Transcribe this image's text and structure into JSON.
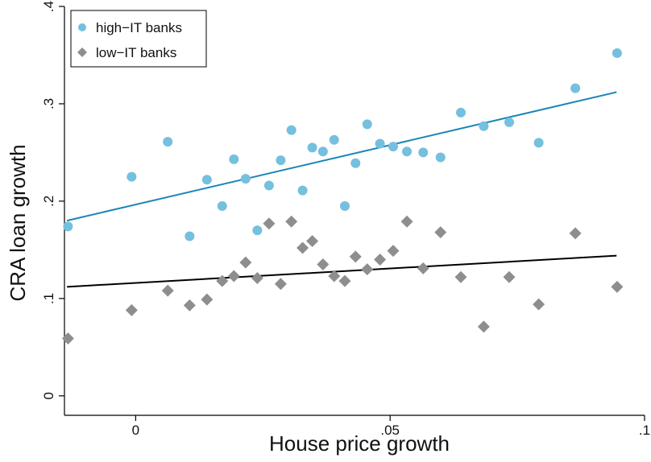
{
  "chart_data": {
    "type": "scatter",
    "xlabel": "House price growth",
    "ylabel": "CRA loan growth",
    "xlim": [
      -0.014,
      0.1
    ],
    "ylim": [
      -0.02,
      0.4
    ],
    "x_ticks": [
      {
        "value": 0,
        "label": "0"
      },
      {
        "value": 0.05,
        "label": ".05"
      },
      {
        "value": 0.1,
        "label": ".1"
      }
    ],
    "y_ticks": [
      {
        "value": 0,
        "label": "0"
      },
      {
        "value": 0.1,
        "label": ".1"
      },
      {
        "value": 0.2,
        "label": ".2"
      },
      {
        "value": 0.3,
        "label": ".3"
      },
      {
        "value": 0.4,
        "label": ".4"
      }
    ],
    "legend": {
      "position": "top-left"
    },
    "series": [
      {
        "name": "high−IT banks",
        "marker": "circle",
        "color": "#74c0de",
        "fit_color": "#1a86b8",
        "fit": {
          "x": [
            -0.0135,
            0.0945
          ],
          "y": [
            0.18,
            0.312
          ]
        },
        "points": [
          [
            -0.0133,
            0.174
          ],
          [
            -0.0008,
            0.225
          ],
          [
            0.0063,
            0.261
          ],
          [
            0.0106,
            0.164
          ],
          [
            0.014,
            0.222
          ],
          [
            0.017,
            0.195
          ],
          [
            0.0193,
            0.243
          ],
          [
            0.0216,
            0.223
          ],
          [
            0.0239,
            0.17
          ],
          [
            0.0262,
            0.216
          ],
          [
            0.0285,
            0.242
          ],
          [
            0.0306,
            0.273
          ],
          [
            0.0328,
            0.211
          ],
          [
            0.0347,
            0.255
          ],
          [
            0.0368,
            0.251
          ],
          [
            0.039,
            0.263
          ],
          [
            0.0411,
            0.195
          ],
          [
            0.0432,
            0.239
          ],
          [
            0.0455,
            0.279
          ],
          [
            0.048,
            0.259
          ],
          [
            0.0506,
            0.256
          ],
          [
            0.0533,
            0.251
          ],
          [
            0.0565,
            0.25
          ],
          [
            0.0599,
            0.245
          ],
          [
            0.0639,
            0.291
          ],
          [
            0.0684,
            0.277
          ],
          [
            0.0734,
            0.281
          ],
          [
            0.0792,
            0.26
          ],
          [
            0.0864,
            0.316
          ],
          [
            0.0946,
            0.352
          ]
        ]
      },
      {
        "name": "low−IT banks",
        "marker": "diamond",
        "color": "#8e8e8e",
        "fit_color": "#000000",
        "fit": {
          "x": [
            -0.0135,
            0.0945
          ],
          "y": [
            0.112,
            0.144
          ]
        },
        "points": [
          [
            -0.0133,
            0.059
          ],
          [
            -0.0008,
            0.088
          ],
          [
            0.0063,
            0.108
          ],
          [
            0.0106,
            0.093
          ],
          [
            0.014,
            0.099
          ],
          [
            0.017,
            0.118
          ],
          [
            0.0193,
            0.123
          ],
          [
            0.0216,
            0.137
          ],
          [
            0.0239,
            0.121
          ],
          [
            0.0262,
            0.177
          ],
          [
            0.0285,
            0.115
          ],
          [
            0.0306,
            0.179
          ],
          [
            0.0328,
            0.152
          ],
          [
            0.0347,
            0.159
          ],
          [
            0.0368,
            0.135
          ],
          [
            0.039,
            0.123
          ],
          [
            0.0411,
            0.118
          ],
          [
            0.0432,
            0.143
          ],
          [
            0.0455,
            0.13
          ],
          [
            0.048,
            0.14
          ],
          [
            0.0506,
            0.149
          ],
          [
            0.0533,
            0.179
          ],
          [
            0.0565,
            0.131
          ],
          [
            0.0599,
            0.168
          ],
          [
            0.0639,
            0.122
          ],
          [
            0.0684,
            0.071
          ],
          [
            0.0734,
            0.122
          ],
          [
            0.0792,
            0.094
          ],
          [
            0.0864,
            0.167
          ],
          [
            0.0946,
            0.112
          ]
        ]
      }
    ]
  }
}
